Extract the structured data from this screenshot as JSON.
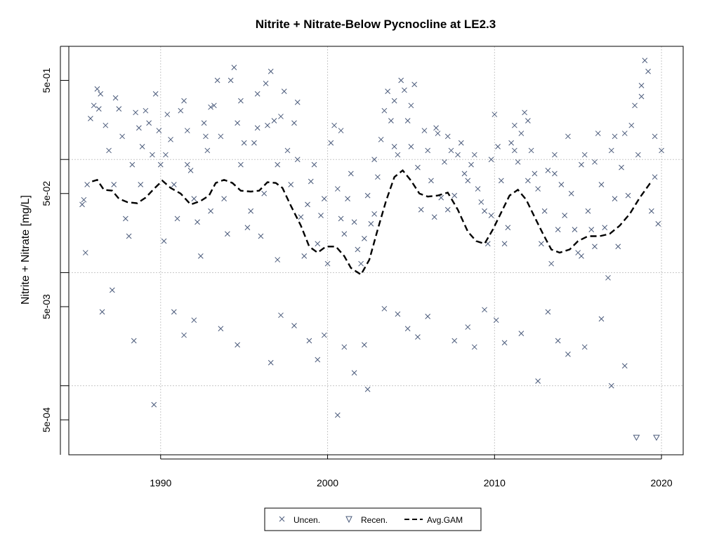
{
  "chart_data": {
    "type": "scatter",
    "title": "Nitrite + Nitrate-Below Pycnocline at LE2.3",
    "xlabel": "",
    "ylabel": "Nitrite + Nitrate [mg/L]",
    "xlim": [
      1984.5,
      2021.3
    ],
    "ylim_log10": [
      -3.61,
      0.0
    ],
    "y_scale": "log",
    "grid": true,
    "x_ticks": [
      {
        "value": 1990,
        "label": "1990"
      },
      {
        "value": 2000,
        "label": "2000"
      },
      {
        "value": 2010,
        "label": "2010"
      },
      {
        "value": 2020,
        "label": "2020"
      }
    ],
    "y_ticks": [
      {
        "value": 0.5,
        "label": "5e-01"
      },
      {
        "value": 0.05,
        "label": "5e-02"
      },
      {
        "value": 0.005,
        "label": "5e-03"
      },
      {
        "value": 0.0005,
        "label": "5e-04"
      }
    ],
    "y_minor_ticks": [
      1,
      0.1,
      0.01,
      0.001
    ],
    "legend": {
      "position": "bottom",
      "entries": [
        {
          "label": "Uncen.",
          "symbol": "x"
        },
        {
          "label": "Recen.",
          "symbol": "triangle-down"
        },
        {
          "label": "Avg.GAM",
          "symbol": "dashed-line"
        }
      ]
    },
    "colors": {
      "points": "#4a5a7a",
      "gam": "#000000",
      "grid": "#c8c8c8"
    },
    "gam": {
      "name": "Avg.GAM",
      "points": [
        [
          1985.9,
          0.064
        ],
        [
          1986.2,
          0.066
        ],
        [
          1986.6,
          0.054
        ],
        [
          1987.1,
          0.053
        ],
        [
          1987.5,
          0.045
        ],
        [
          1988.0,
          0.042
        ],
        [
          1988.6,
          0.041
        ],
        [
          1989.1,
          0.046
        ],
        [
          1989.6,
          0.055
        ],
        [
          1990.1,
          0.065
        ],
        [
          1990.6,
          0.056
        ],
        [
          1991.2,
          0.05
        ],
        [
          1991.8,
          0.04
        ],
        [
          1992.4,
          0.043
        ],
        [
          1992.9,
          0.048
        ],
        [
          1993.3,
          0.062
        ],
        [
          1993.8,
          0.066
        ],
        [
          1994.3,
          0.062
        ],
        [
          1994.8,
          0.053
        ],
        [
          1995.4,
          0.052
        ],
        [
          1995.9,
          0.053
        ],
        [
          1996.4,
          0.063
        ],
        [
          1996.9,
          0.062
        ],
        [
          1997.3,
          0.056
        ],
        [
          1997.8,
          0.039
        ],
        [
          1998.4,
          0.026
        ],
        [
          1998.9,
          0.017
        ],
        [
          1999.4,
          0.015
        ],
        [
          1999.9,
          0.017
        ],
        [
          2000.5,
          0.017
        ],
        [
          2001.0,
          0.014
        ],
        [
          2001.4,
          0.011
        ],
        [
          2002.0,
          0.0096
        ],
        [
          2002.5,
          0.013
        ],
        [
          2003.0,
          0.024
        ],
        [
          2003.5,
          0.043
        ],
        [
          2004.0,
          0.07
        ],
        [
          2004.5,
          0.08
        ],
        [
          2005.0,
          0.065
        ],
        [
          2005.5,
          0.05
        ],
        [
          2006.0,
          0.047
        ],
        [
          2006.6,
          0.048
        ],
        [
          2007.2,
          0.051
        ],
        [
          2007.8,
          0.036
        ],
        [
          2008.4,
          0.023
        ],
        [
          2008.9,
          0.019
        ],
        [
          2009.4,
          0.018
        ],
        [
          2009.9,
          0.024
        ],
        [
          2010.4,
          0.034
        ],
        [
          2010.9,
          0.048
        ],
        [
          2011.4,
          0.054
        ],
        [
          2011.9,
          0.044
        ],
        [
          2012.4,
          0.031
        ],
        [
          2012.9,
          0.022
        ],
        [
          2013.4,
          0.016
        ],
        [
          2013.9,
          0.015
        ],
        [
          2014.5,
          0.016
        ],
        [
          2015.0,
          0.019
        ],
        [
          2015.6,
          0.021
        ],
        [
          2016.3,
          0.021
        ],
        [
          2016.9,
          0.022
        ],
        [
          2017.5,
          0.026
        ],
        [
          2018.1,
          0.033
        ],
        [
          2018.7,
          0.046
        ],
        [
          2019.3,
          0.061
        ],
        [
          2019.5,
          0.064
        ]
      ]
    },
    "uncensored": [
      [
        1985.4,
        0.044
      ],
      [
        1985.6,
        0.06
      ],
      [
        1985.8,
        0.23
      ],
      [
        1986.0,
        0.3
      ],
      [
        1986.2,
        0.42
      ],
      [
        1986.4,
        0.38
      ],
      [
        1986.7,
        0.2
      ],
      [
        1986.9,
        0.12
      ],
      [
        1987.1,
        0.007
      ],
      [
        1987.3,
        0.35
      ],
      [
        1987.5,
        0.28
      ],
      [
        1987.7,
        0.16
      ],
      [
        1987.9,
        0.03
      ],
      [
        1988.1,
        0.021
      ],
      [
        1988.3,
        0.09
      ],
      [
        1988.5,
        0.26
      ],
      [
        1988.7,
        0.19
      ],
      [
        1988.9,
        0.13
      ],
      [
        1989.1,
        0.27
      ],
      [
        1989.3,
        0.21
      ],
      [
        1989.5,
        0.11
      ],
      [
        1989.7,
        0.38
      ],
      [
        1989.9,
        0.18
      ],
      [
        1990.0,
        0.09
      ],
      [
        1990.2,
        0.019
      ],
      [
        1990.4,
        0.25
      ],
      [
        1990.6,
        0.15
      ],
      [
        1990.8,
        0.06
      ],
      [
        1991.0,
        0.03
      ],
      [
        1991.2,
        0.27
      ],
      [
        1991.4,
        0.33
      ],
      [
        1991.6,
        0.18
      ],
      [
        1991.8,
        0.08
      ],
      [
        1992.0,
        0.045
      ],
      [
        1992.2,
        0.028
      ],
      [
        1992.4,
        0.014
      ],
      [
        1992.6,
        0.21
      ],
      [
        1992.8,
        0.12
      ],
      [
        1993.0,
        0.035
      ],
      [
        1993.2,
        0.3
      ],
      [
        1993.4,
        0.5
      ],
      [
        1993.6,
        0.16
      ],
      [
        1993.8,
        0.045
      ],
      [
        1994.0,
        0.022
      ],
      [
        1994.2,
        0.5
      ],
      [
        1994.4,
        0.65
      ],
      [
        1994.6,
        0.21
      ],
      [
        1994.8,
        0.09
      ],
      [
        1995.0,
        0.14
      ],
      [
        1995.2,
        0.025
      ],
      [
        1995.4,
        0.035
      ],
      [
        1995.6,
        0.14
      ],
      [
        1995.8,
        0.38
      ],
      [
        1996.0,
        0.021
      ],
      [
        1996.2,
        0.05
      ],
      [
        1996.4,
        0.2
      ],
      [
        1996.6,
        0.6
      ],
      [
        1996.8,
        0.22
      ],
      [
        1997.0,
        0.09
      ],
      [
        1997.2,
        0.24
      ],
      [
        1997.4,
        0.4
      ],
      [
        1997.6,
        0.12
      ],
      [
        1997.8,
        0.06
      ],
      [
        1998.0,
        0.21
      ],
      [
        1998.2,
        0.32
      ],
      [
        1998.4,
        0.031
      ],
      [
        1998.6,
        0.014
      ],
      [
        1998.8,
        0.04
      ],
      [
        1999.0,
        0.064
      ],
      [
        1999.2,
        0.09
      ],
      [
        1999.4,
        0.018
      ],
      [
        1999.6,
        0.032
      ],
      [
        1999.8,
        0.045
      ],
      [
        2000.0,
        0.012
      ],
      [
        2000.2,
        0.14
      ],
      [
        2000.4,
        0.2
      ],
      [
        2000.6,
        0.055
      ],
      [
        2000.8,
        0.03
      ],
      [
        2001.0,
        0.022
      ],
      [
        2001.2,
        0.045
      ],
      [
        2001.4,
        0.075
      ],
      [
        2001.6,
        0.028
      ],
      [
        2001.8,
        0.016
      ],
      [
        2002.0,
        0.012
      ],
      [
        2002.2,
        0.02
      ],
      [
        2002.4,
        0.048
      ],
      [
        2002.6,
        0.027
      ],
      [
        2002.8,
        0.033
      ],
      [
        2003.0,
        0.07
      ],
      [
        2003.2,
        0.15
      ],
      [
        2003.4,
        0.27
      ],
      [
        2003.6,
        0.4
      ],
      [
        2003.8,
        0.22
      ],
      [
        2004.0,
        0.13
      ],
      [
        2004.2,
        0.11
      ],
      [
        2004.4,
        0.5
      ],
      [
        2004.6,
        0.41
      ],
      [
        2004.8,
        0.22
      ],
      [
        2005.0,
        0.3
      ],
      [
        2005.2,
        0.46
      ],
      [
        2005.4,
        0.085
      ],
      [
        2005.6,
        0.036
      ],
      [
        2005.8,
        0.18
      ],
      [
        2006.0,
        0.12
      ],
      [
        2006.2,
        0.065
      ],
      [
        2006.4,
        0.031
      ],
      [
        2006.6,
        0.17
      ],
      [
        2006.8,
        0.046
      ],
      [
        2007.0,
        0.095
      ],
      [
        2007.2,
        0.036
      ],
      [
        2007.4,
        0.12
      ],
      [
        2007.6,
        0.048
      ],
      [
        2007.8,
        0.11
      ],
      [
        2008.0,
        0.14
      ],
      [
        2008.2,
        0.075
      ],
      [
        2008.4,
        0.065
      ],
      [
        2008.6,
        0.09
      ],
      [
        2008.8,
        0.11
      ],
      [
        2009.0,
        0.055
      ],
      [
        2009.2,
        0.042
      ],
      [
        2009.4,
        0.035
      ],
      [
        2009.6,
        0.018
      ],
      [
        2009.8,
        0.1
      ],
      [
        2010.0,
        0.25
      ],
      [
        2010.2,
        0.13
      ],
      [
        2010.4,
        0.065
      ],
      [
        2010.6,
        0.018
      ],
      [
        2010.8,
        0.025
      ],
      [
        2011.0,
        0.14
      ],
      [
        2011.2,
        0.12
      ],
      [
        2011.4,
        0.095
      ],
      [
        2011.6,
        0.17
      ],
      [
        2011.8,
        0.26
      ],
      [
        2012.0,
        0.22
      ],
      [
        2012.2,
        0.12
      ],
      [
        2012.4,
        0.075
      ],
      [
        2012.6,
        0.055
      ],
      [
        2012.8,
        0.018
      ],
      [
        2013.0,
        0.035
      ],
      [
        2013.2,
        0.08
      ],
      [
        2013.4,
        0.012
      ],
      [
        2013.6,
        0.075
      ],
      [
        2013.8,
        0.024
      ],
      [
        2014.0,
        0.06
      ],
      [
        2014.2,
        0.032
      ],
      [
        2014.4,
        0.16
      ],
      [
        2014.6,
        0.05
      ],
      [
        2014.8,
        0.024
      ],
      [
        2015.0,
        0.015
      ],
      [
        2015.2,
        0.09
      ],
      [
        2015.4,
        0.11
      ],
      [
        2015.6,
        0.035
      ],
      [
        2015.8,
        0.024
      ],
      [
        2016.0,
        0.017
      ],
      [
        2016.2,
        0.17
      ],
      [
        2016.4,
        0.06
      ],
      [
        2016.6,
        0.025
      ],
      [
        2016.8,
        0.009
      ],
      [
        2017.0,
        0.12
      ],
      [
        2017.2,
        0.045
      ],
      [
        2017.4,
        0.017
      ],
      [
        2017.6,
        0.085
      ],
      [
        2017.8,
        0.17
      ],
      [
        2018.0,
        0.048
      ],
      [
        2018.2,
        0.2
      ],
      [
        2018.4,
        0.3
      ],
      [
        2018.6,
        0.11
      ],
      [
        2018.8,
        0.45
      ],
      [
        2019.0,
        0.75
      ],
      [
        2019.2,
        0.6
      ],
      [
        2019.4,
        0.035
      ],
      [
        2019.6,
        0.16
      ],
      [
        2019.8,
        0.027
      ],
      [
        2020.0,
        0.12
      ],
      [
        1985.3,
        0.04
      ],
      [
        1986.5,
        0.0045
      ],
      [
        1988.4,
        0.0025
      ],
      [
        1989.6,
        0.00068
      ],
      [
        1990.8,
        0.0045
      ],
      [
        1991.4,
        0.0028
      ],
      [
        1992.0,
        0.0038
      ],
      [
        1993.6,
        0.0032
      ],
      [
        1994.6,
        0.0023
      ],
      [
        1996.6,
        0.0016
      ],
      [
        1997.2,
        0.0042
      ],
      [
        1998.0,
        0.0034
      ],
      [
        1998.9,
        0.0025
      ],
      [
        1999.4,
        0.0017
      ],
      [
        1999.8,
        0.0028
      ],
      [
        2000.6,
        0.00055
      ],
      [
        2001.0,
        0.0022
      ],
      [
        2001.6,
        0.0013
      ],
      [
        2002.2,
        0.0023
      ],
      [
        2002.4,
        0.00093
      ],
      [
        2003.4,
        0.0048
      ],
      [
        2004.2,
        0.0043
      ],
      [
        2004.8,
        0.0032
      ],
      [
        2005.4,
        0.0027
      ],
      [
        2006.0,
        0.0041
      ],
      [
        2007.6,
        0.0025
      ],
      [
        2008.4,
        0.0033
      ],
      [
        2008.8,
        0.0022
      ],
      [
        2009.4,
        0.0047
      ],
      [
        2010.1,
        0.0038
      ],
      [
        2010.6,
        0.0024
      ],
      [
        2011.6,
        0.0029
      ],
      [
        2012.6,
        0.0011
      ],
      [
        2013.2,
        0.0045
      ],
      [
        2013.8,
        0.0025
      ],
      [
        2014.4,
        0.0019
      ],
      [
        2015.4,
        0.0022
      ],
      [
        2016.4,
        0.0039
      ],
      [
        2017.0,
        0.001
      ],
      [
        2017.8,
        0.0015
      ],
      [
        1985.5,
        0.015
      ],
      [
        1986.3,
        0.28
      ],
      [
        1987.2,
        0.06
      ],
      [
        1988.8,
        0.06
      ],
      [
        1990.3,
        0.11
      ],
      [
        1991.6,
        0.09
      ],
      [
        1992.7,
        0.16
      ],
      [
        1993.0,
        0.29
      ],
      [
        1994.8,
        0.33
      ],
      [
        1995.8,
        0.19
      ],
      [
        1996.3,
        0.47
      ],
      [
        1997.0,
        0.013
      ],
      [
        1998.2,
        0.1
      ],
      [
        2000.8,
        0.18
      ],
      [
        2002.8,
        0.1
      ],
      [
        2004.0,
        0.33
      ],
      [
        2005.0,
        0.13
      ],
      [
        2006.5,
        0.19
      ],
      [
        2007.2,
        0.16
      ],
      [
        2009.8,
        0.032
      ],
      [
        2011.2,
        0.2
      ],
      [
        2012.0,
        0.065
      ],
      [
        2013.6,
        0.11
      ],
      [
        2015.2,
        0.014
      ],
      [
        2016.0,
        0.095
      ],
      [
        2017.2,
        0.16
      ],
      [
        2018.8,
        0.36
      ],
      [
        2019.6,
        0.07
      ]
    ],
    "recensored": [
      [
        2018.5,
        0.00035
      ],
      [
        2019.7,
        0.00035
      ]
    ]
  }
}
